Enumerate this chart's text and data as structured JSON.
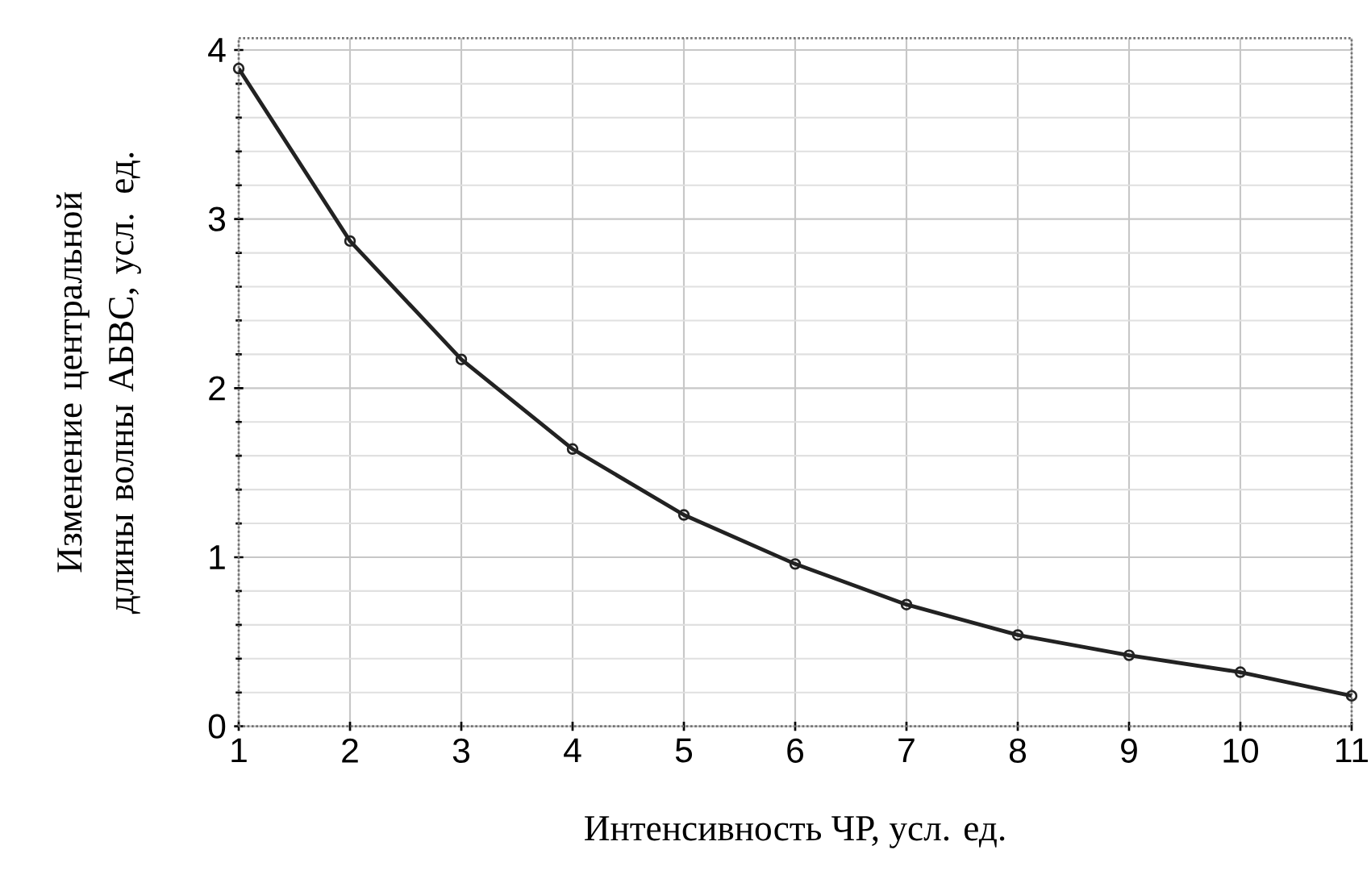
{
  "chart_data": {
    "type": "line",
    "xlabel": "Интенсивность ЧР, усл. ед.",
    "ylabel": "Изменение центральной длины волны АБВС, усл. ед.",
    "x": [
      1,
      2,
      3,
      4,
      5,
      6,
      7,
      8,
      9,
      10,
      11
    ],
    "series": [
      {
        "color": "#222222",
        "values": [
          3.89,
          2.87,
          2.17,
          1.64,
          1.25,
          0.96,
          0.72,
          0.54,
          0.42,
          0.32,
          0.18
        ]
      }
    ],
    "xlim": [
      1,
      11
    ],
    "ylim": [
      0,
      4.07
    ],
    "xticks": [
      1,
      2,
      3,
      4,
      5,
      6,
      7,
      8,
      9,
      10,
      11
    ],
    "yticks": [
      0,
      1,
      2,
      3,
      4
    ],
    "grid": true,
    "marker": "circle",
    "line_style": "solid"
  }
}
